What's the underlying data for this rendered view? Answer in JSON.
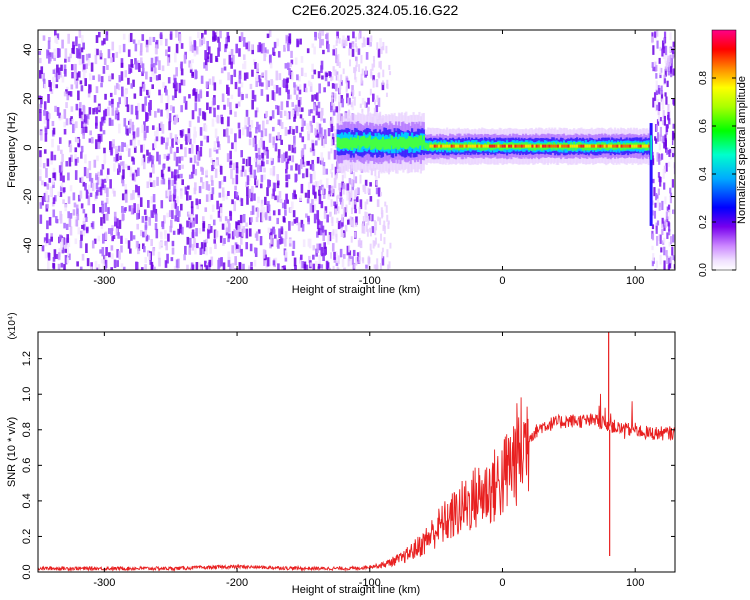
{
  "title": "C2E6.2025.324.05.16.G22",
  "chart_data": [
    {
      "type": "heatmap",
      "xlabel": "Height of straight line (km)",
      "ylabel": "Frequency (Hz)",
      "xlim": [
        -350,
        130
      ],
      "ylim": [
        -50,
        48
      ],
      "x_ticks": [
        -300,
        -200,
        -100,
        0,
        100
      ],
      "y_ticks": [
        -40,
        -20,
        0,
        20,
        40
      ],
      "colorbar": {
        "label": "Normalized spectral amplitude",
        "range": [
          0.0,
          1.0
        ],
        "ticks": [
          "0.0",
          "0.2",
          "0.4",
          "0.6",
          "0.8"
        ],
        "tick_values": [
          0.0,
          0.2,
          0.4,
          0.6,
          0.8
        ]
      },
      "description_points": {
        "noise_region_x": [
          -350,
          -90
        ],
        "ridge_x": [
          -125,
          112
        ],
        "ridge_center_hz": [
          2,
          0
        ],
        "edge_x": 112
      },
      "colors": [
        "#ffffff",
        "#cc99ff",
        "#8800ee",
        "#0000ff",
        "#00ffff",
        "#00ff00",
        "#ffff00",
        "#ff8800",
        "#ff0000",
        "#ff00aa"
      ]
    },
    {
      "type": "line",
      "xlabel": "Height of straight line (km)",
      "ylabel": "SNR (10 * v/v)",
      "scale_label": "(x10⁴)",
      "xlim": [
        -350,
        130
      ],
      "ylim": [
        0.0,
        1.35
      ],
      "x_ticks": [
        -300,
        -200,
        -100,
        0,
        100
      ],
      "y_ticks": [
        0.0,
        0.2,
        0.4,
        0.6,
        0.8,
        1.0,
        1.2
      ],
      "y_tick_labels": [
        "0.0",
        "0.2",
        "0.4",
        "0.6",
        "0.8",
        "1.0",
        "1.2"
      ],
      "series": [
        {
          "color": "#e82020",
          "x": [
            -350,
            -300,
            -250,
            -200,
            -150,
            -110,
            -90,
            -75,
            -60,
            -50,
            -40,
            -30,
            -20,
            -10,
            0,
            10,
            20,
            30,
            40,
            50,
            60,
            70,
            80,
            90,
            100,
            110,
            130
          ],
          "y": [
            0.02,
            0.02,
            0.02,
            0.03,
            0.02,
            0.02,
            0.04,
            0.08,
            0.16,
            0.24,
            0.3,
            0.36,
            0.42,
            0.46,
            0.52,
            0.65,
            0.76,
            0.82,
            0.84,
            0.85,
            0.85,
            0.85,
            0.83,
            0.8,
            0.8,
            0.78,
            0.78
          ]
        }
      ],
      "spikes": [
        {
          "x": 80,
          "y": 1.35
        },
        {
          "x": 80,
          "y": 0.09
        }
      ]
    }
  ]
}
